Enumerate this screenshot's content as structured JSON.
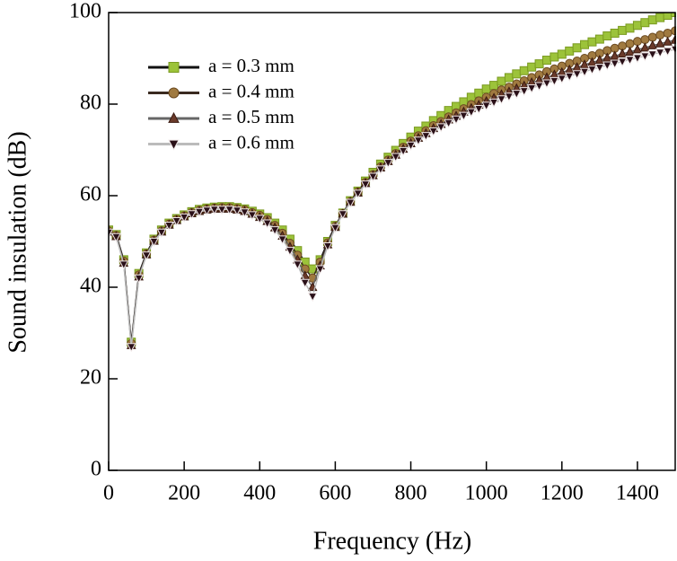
{
  "chart_data": {
    "type": "line_markers",
    "x_label": "Frequency (Hz)",
    "y_label": "Sound insulation (dB)",
    "xlim": [
      0,
      1500
    ],
    "ylim": [
      0,
      100
    ],
    "xticks": [
      0,
      200,
      400,
      600,
      800,
      1000,
      1200,
      1400
    ],
    "yticks": [
      0,
      20,
      40,
      60,
      80,
      100
    ],
    "legend": "upper left",
    "x": [
      0,
      20,
      40,
      60,
      80,
      100,
      120,
      140,
      160,
      180,
      200,
      220,
      240,
      260,
      280,
      300,
      320,
      340,
      360,
      380,
      400,
      420,
      440,
      460,
      480,
      500,
      520,
      540,
      560,
      580,
      600,
      620,
      640,
      660,
      680,
      700,
      720,
      740,
      760,
      780,
      800,
      820,
      840,
      860,
      880,
      900,
      920,
      940,
      960,
      980,
      1000,
      1020,
      1040,
      1060,
      1080,
      1100,
      1120,
      1140,
      1160,
      1180,
      1200,
      1220,
      1240,
      1260,
      1280,
      1300,
      1320,
      1340,
      1360,
      1380,
      1400,
      1420,
      1440,
      1460,
      1480,
      1500
    ],
    "series": [
      {
        "name": "a = 0.3 mm",
        "color": "#9cc33a",
        "edge_color": "#7a9a20",
        "line_color": "#111111",
        "marker": "square",
        "values": [
          52.5,
          51.5,
          46,
          28,
          43,
          47.5,
          50.5,
          52.5,
          54,
          55,
          55.8,
          56.5,
          57,
          57.3,
          57.5,
          57.6,
          57.6,
          57.4,
          57.1,
          56.6,
          56,
          55.2,
          54,
          52.5,
          50.5,
          48,
          45.5,
          44,
          46,
          50,
          53.5,
          56.2,
          58.9,
          61.0,
          63.2,
          65.1,
          66.9,
          68.4,
          69.9,
          71.4,
          72.8,
          74.1,
          75.2,
          76.4,
          77.5,
          78.6,
          79.5,
          80.5,
          81.5,
          82.4,
          83.3,
          84.1,
          85.0,
          85.8,
          86.6,
          87.3,
          88.1,
          88.8,
          89.6,
          90.3,
          90.9,
          91.6,
          92.3,
          93.0,
          93.6,
          94.2,
          94.9,
          95.5,
          96.1,
          96.6,
          97.2,
          97.8,
          98.4,
          98.9,
          99.4,
          100
        ]
      },
      {
        "name": "a = 0.4 mm",
        "color": "#a07a40",
        "edge_color": "#6b4a20",
        "line_color": "#3a2a20",
        "marker": "circle",
        "values": [
          52.3,
          51.3,
          45.7,
          27.7,
          42.7,
          47.3,
          50.3,
          52.3,
          53.8,
          54.8,
          55.6,
          56.3,
          56.8,
          57.1,
          57.3,
          57.4,
          57.4,
          57.2,
          56.9,
          56.3,
          55.7,
          54.8,
          53.5,
          51.8,
          49.6,
          47,
          44,
          42,
          45.5,
          49.7,
          53.3,
          56.1,
          58.7,
          60.8,
          62.9,
          64.6,
          66.3,
          67.8,
          69.2,
          70.6,
          71.9,
          73.1,
          74.2,
          75.3,
          76.2,
          77.2,
          78.1,
          79.0,
          79.9,
          80.7,
          81.5,
          82.3,
          83.1,
          83.7,
          84.4,
          85.1,
          85.8,
          86.4,
          87.1,
          87.7,
          88.3,
          88.9,
          89.4,
          90.0,
          90.6,
          91.1,
          91.7,
          92.2,
          92.7,
          93.2,
          93.7,
          94.1,
          94.6,
          95.1,
          95.5,
          96.0
        ]
      },
      {
        "name": "a = 0.5 mm",
        "color": "#6a3a2a",
        "edge_color": "#3a1a10",
        "line_color": "#666666",
        "marker": "triangle-up",
        "values": [
          52.1,
          51.1,
          45.3,
          27.3,
          42.3,
          47.1,
          50.1,
          52.1,
          53.6,
          54.6,
          55.4,
          56.1,
          56.6,
          56.9,
          57.1,
          57.1,
          57.1,
          56.9,
          56.6,
          56,
          55.3,
          54.4,
          53,
          51.2,
          48.8,
          46,
          42.5,
          40,
          44.7,
          49.3,
          53.1,
          56.0,
          58.6,
          60.6,
          62.7,
          64.4,
          66.1,
          67.5,
          68.9,
          70.2,
          71.4,
          72.6,
          73.6,
          74.7,
          75.6,
          76.6,
          77.4,
          78.3,
          79.1,
          79.8,
          80.6,
          81.3,
          82.1,
          82.7,
          83.4,
          84.0,
          84.7,
          85.2,
          85.8,
          86.4,
          86.9,
          87.5,
          88.0,
          88.6,
          89.1,
          89.6,
          90.1,
          90.5,
          91.0,
          91.4,
          91.9,
          92.3,
          92.8,
          93.2,
          93.6,
          94.0
        ]
      },
      {
        "name": "a = 0.6 mm",
        "color": "#2a1018",
        "edge_color": "#f0e8e8",
        "line_color": "#bbbbbb",
        "marker": "triangle-down",
        "values": [
          52,
          51,
          45,
          27,
          42,
          47,
          50,
          52,
          53.5,
          54.5,
          55.3,
          56,
          56.5,
          56.8,
          57,
          57,
          57,
          56.8,
          56.4,
          55.8,
          55,
          54,
          52.5,
          50.5,
          48,
          45,
          41,
          38,
          44,
          49,
          53,
          56,
          58.5,
          60.5,
          62.5,
          64.2,
          65.8,
          67.2,
          68.5,
          69.8,
          71,
          72.1,
          73.1,
          74.1,
          75,
          75.9,
          76.7,
          77.5,
          78.3,
          79,
          79.7,
          80.4,
          81.1,
          81.7,
          82.3,
          82.9,
          83.5,
          84,
          84.6,
          85.1,
          85.6,
          86.1,
          86.6,
          87.1,
          87.6,
          88,
          88.5,
          88.9,
          89.3,
          89.7,
          90.1,
          90.5,
          90.9,
          91.3,
          91.6,
          92
        ]
      }
    ]
  }
}
